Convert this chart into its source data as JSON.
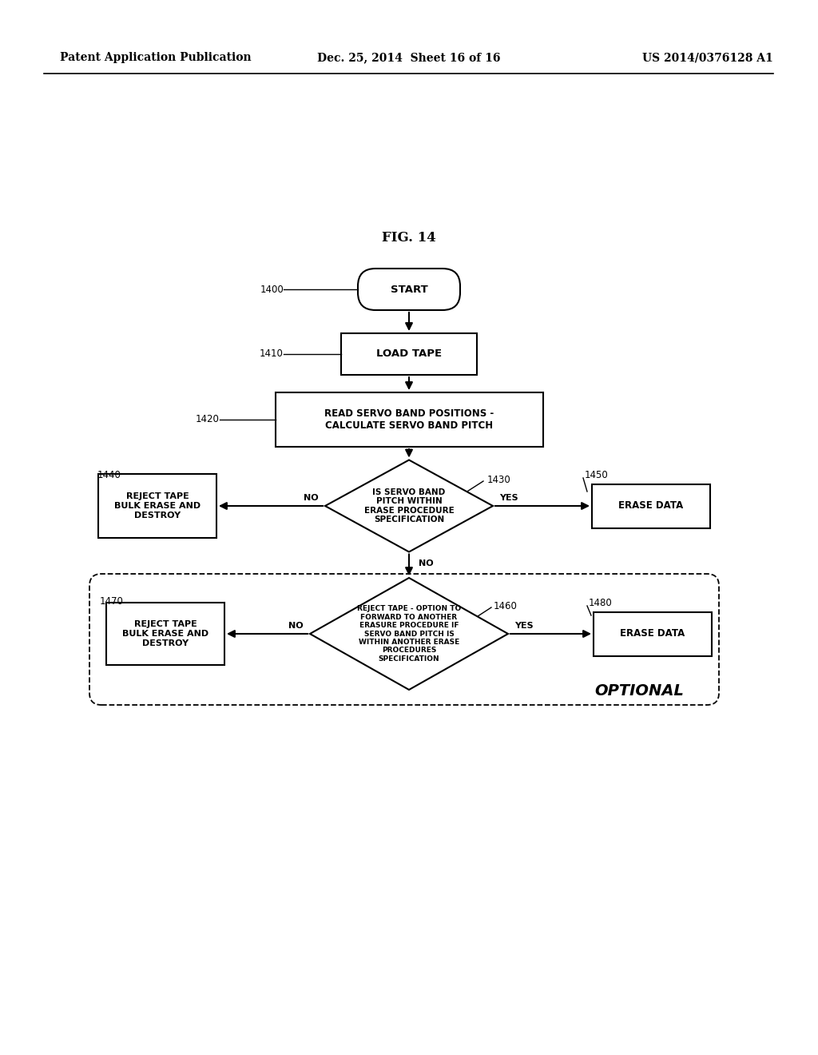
{
  "title": "FIG. 14",
  "header_left": "Patent Application Publication",
  "header_mid": "Dec. 25, 2014  Sheet 16 of 16",
  "header_right": "US 2014/0376128 A1",
  "bg_color": "#ffffff",
  "start_label": "START",
  "load_label": "LOAD TAPE",
  "read_label": "READ SERVO BAND POSITIONS -\nCALCULATE SERVO BAND PITCH",
  "d1_label": "IS SERVO BAND\nPITCH WITHIN\nERASE PROCEDURE\nSPECIFICATION",
  "reject1_label": "REJECT TAPE\nBULK ERASE AND\nDESTROY",
  "erase1_label": "ERASE DATA",
  "d2_label": "REJECT TAPE - OPTION TO\nFORWARD TO ANOTHER\nERASURE PROCEDURE IF\nSERVO BAND PITCH IS\nWITHIN ANOTHER ERASE\nPROCEDURES\nSPECIFICATION",
  "reject2_label": "REJECT TAPE\nBULK ERASE AND\nDESTROY",
  "erase2_label": "ERASE DATA",
  "optional_label": "OPTIONAL",
  "ref_1400": "1400",
  "ref_1410": "1410",
  "ref_1420": "1420",
  "ref_1430": "1430",
  "ref_1440": "1440",
  "ref_1450": "1450",
  "ref_1460": "1460",
  "ref_1470": "1470",
  "ref_1480": "1480",
  "yes_label": "YES",
  "no_label": "NO"
}
